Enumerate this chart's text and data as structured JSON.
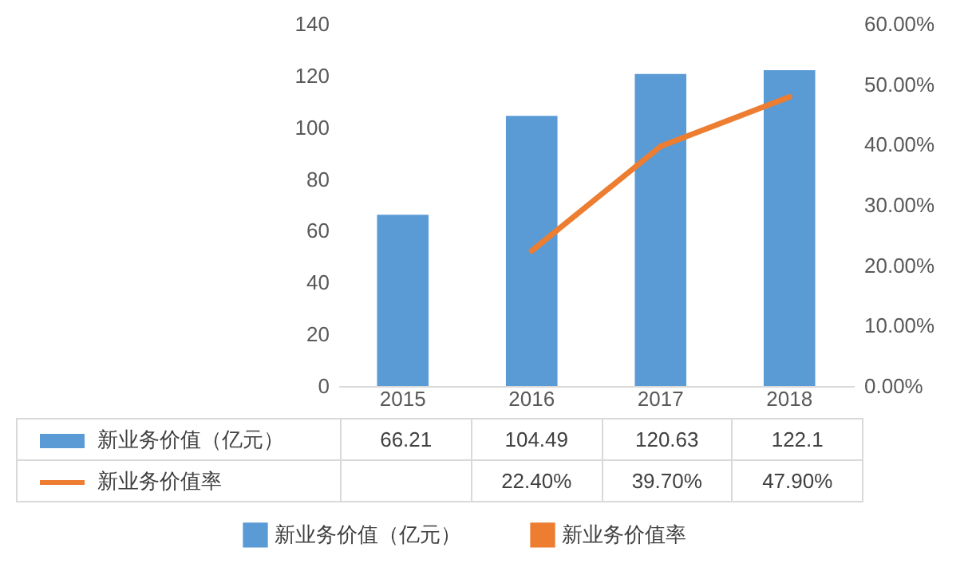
{
  "chart_data": {
    "type": "bar",
    "categories": [
      "2015",
      "2016",
      "2017",
      "2018"
    ],
    "series": [
      {
        "name": "新业务价值（亿元）",
        "color": "#5b9bd5",
        "values": [
          66.21,
          104.49,
          120.63,
          122.1
        ],
        "value_labels": [
          "66.21",
          "104.49",
          "120.63",
          "122.1"
        ]
      },
      {
        "name": "新业务价值率",
        "type": "line",
        "axis": "y2",
        "color": "#ed7d31",
        "values": [
          null,
          22.4,
          39.7,
          47.9
        ],
        "value_labels": [
          null,
          "22.40%",
          "39.70%",
          "47.90%"
        ]
      }
    ],
    "ylim": [
      0,
      140
    ],
    "yticks": [
      0,
      20,
      40,
      60,
      80,
      100,
      120,
      140
    ],
    "y2lim": [
      0,
      60
    ],
    "y2ticks": [
      {
        "value": 0,
        "label": "0.00%"
      },
      {
        "value": 10,
        "label": "10.00%"
      },
      {
        "value": 20,
        "label": "20.00%"
      },
      {
        "value": 30,
        "label": "30.00%"
      },
      {
        "value": 40,
        "label": "40.00%"
      },
      {
        "value": 50,
        "label": "50.00%"
      },
      {
        "value": 60,
        "label": "60.00%"
      }
    ],
    "grid": false,
    "legend": "bottom",
    "marker": "none",
    "line_style": "solid"
  }
}
